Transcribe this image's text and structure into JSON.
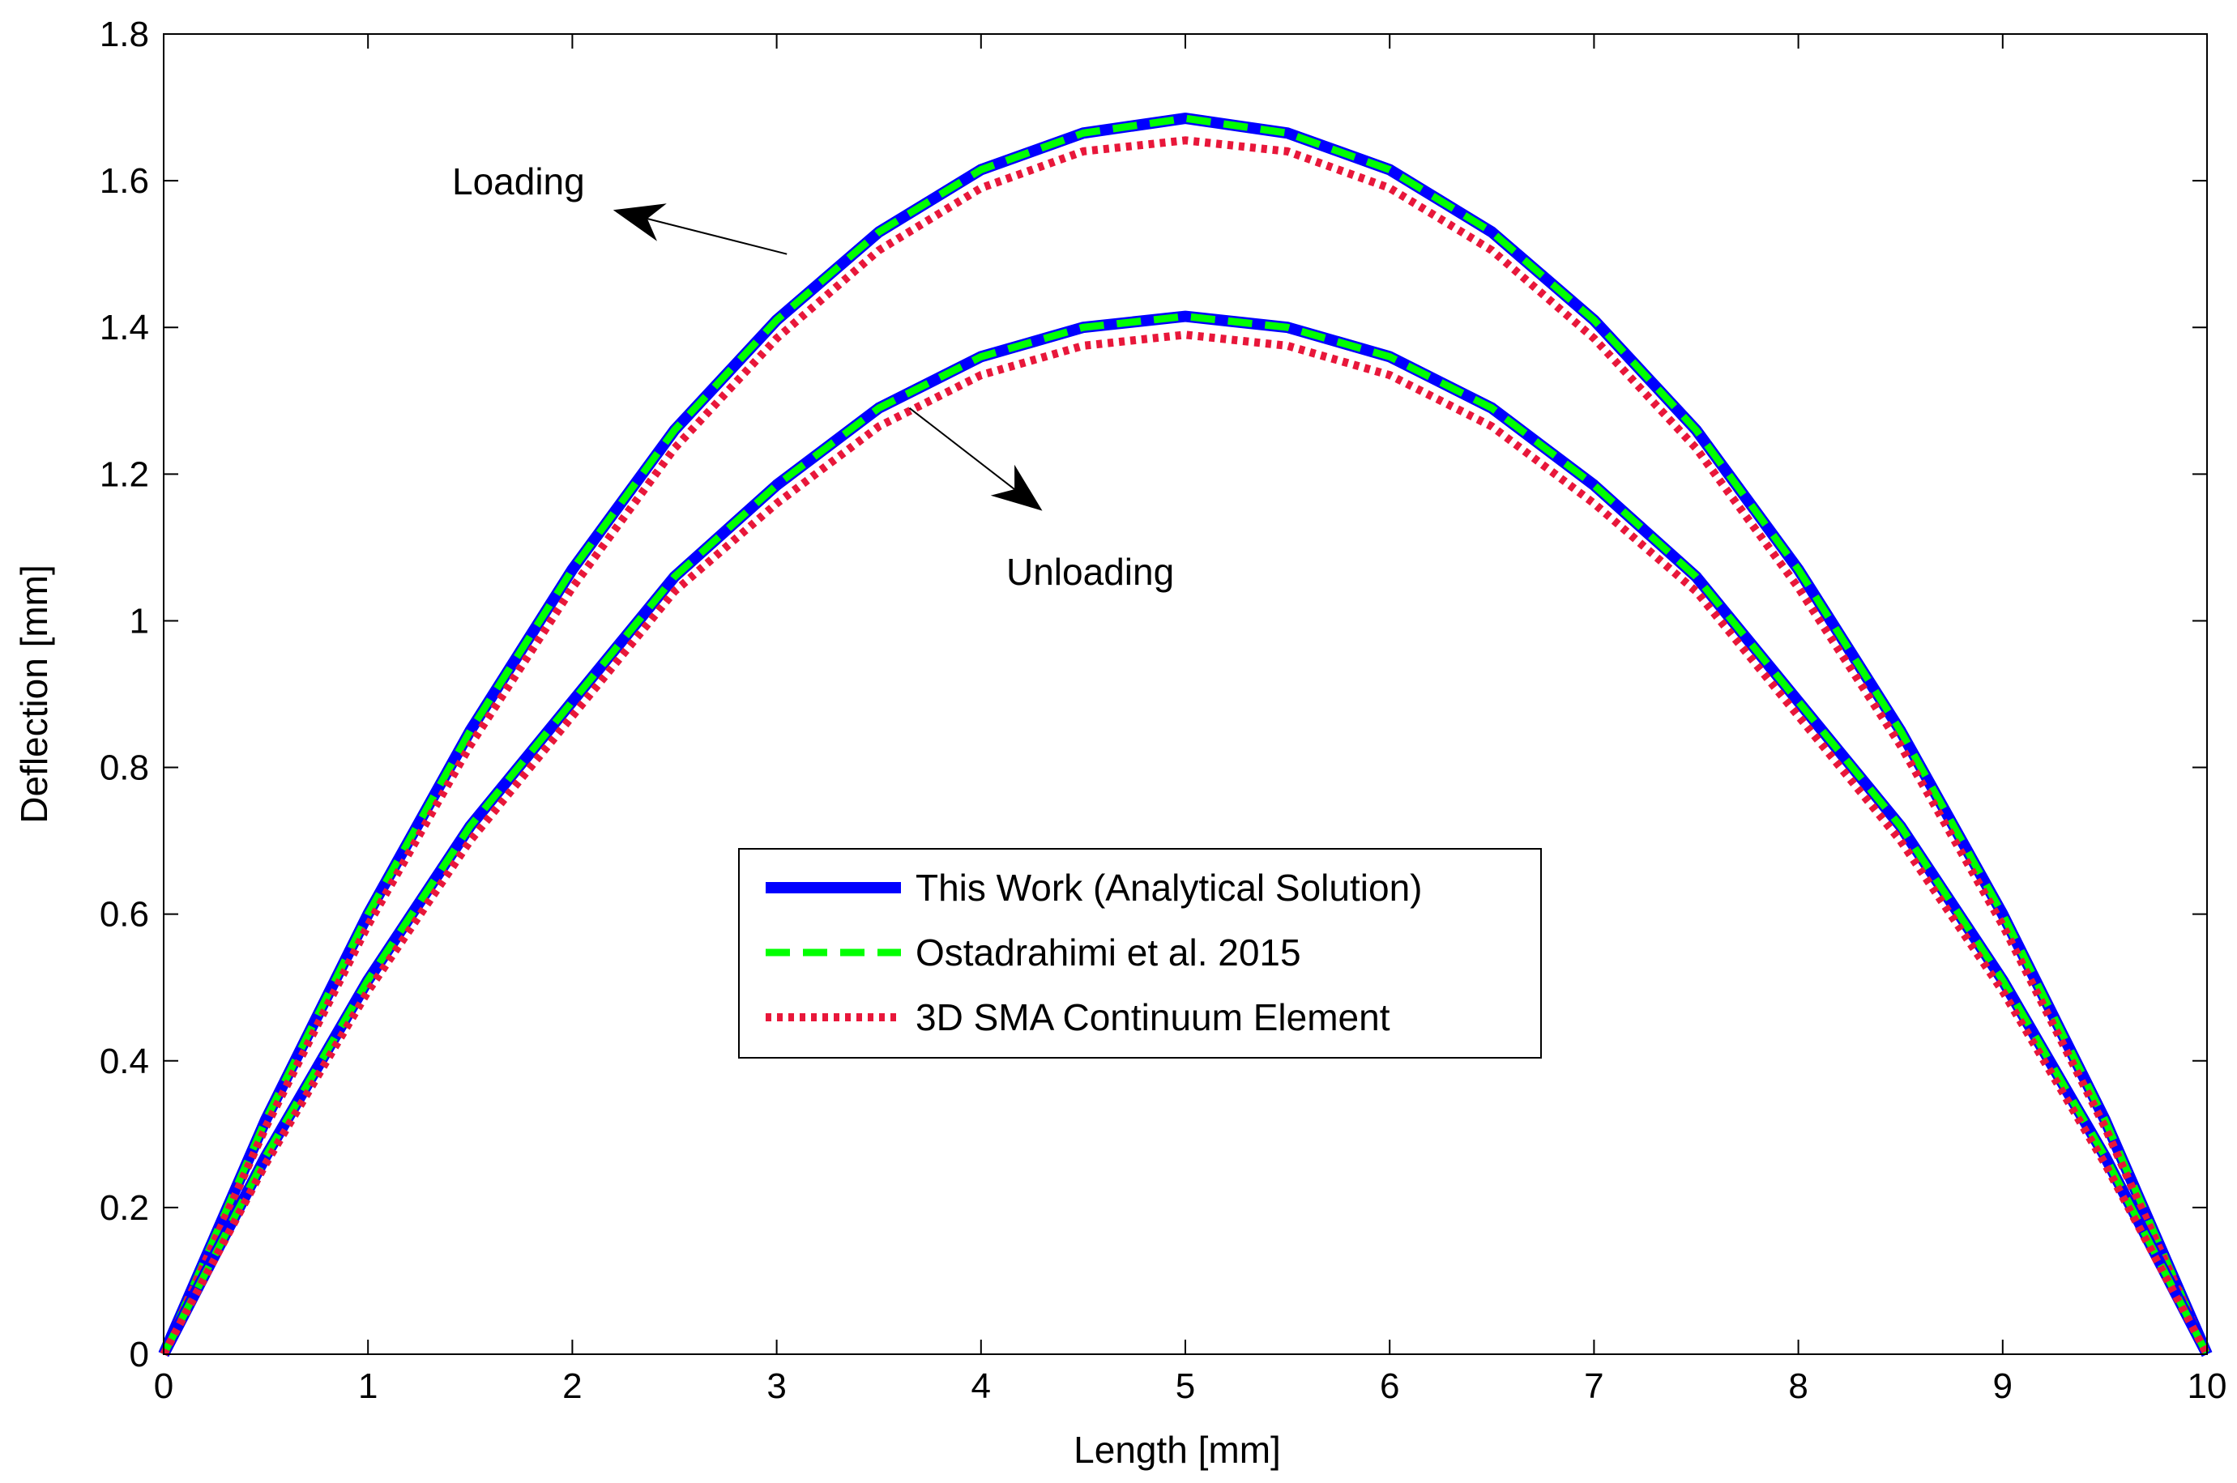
{
  "chart_data": {
    "type": "line",
    "title": "",
    "xlabel": "Length [mm]",
    "ylabel": "Deflection [mm]",
    "xlim": [
      0,
      10
    ],
    "ylim": [
      0,
      1.8
    ],
    "x_ticks": [
      0,
      1,
      2,
      3,
      4,
      5,
      6,
      7,
      8,
      9,
      10
    ],
    "x_tick_labels": [
      "0",
      "1",
      "2",
      "3",
      "4",
      "5",
      "6",
      "7",
      "8",
      "9",
      "10"
    ],
    "y_ticks": [
      0,
      0.2,
      0.4,
      0.6,
      0.8,
      1.0,
      1.2,
      1.4,
      1.6,
      1.8
    ],
    "y_tick_labels": [
      "0",
      "0.2",
      "0.4",
      "0.6",
      "0.8",
      "1",
      "1.2",
      "1.4",
      "1.6",
      "1.8"
    ],
    "grid": false,
    "legend_position": "center",
    "x": [
      0,
      0.5,
      1,
      1.5,
      2,
      2.5,
      3,
      3.5,
      4,
      4.5,
      5,
      5.5,
      6,
      6.5,
      7,
      7.5,
      8,
      8.5,
      9,
      9.5,
      10
    ],
    "series": [
      {
        "name": "This Work (Analytical Solution)",
        "branch": "Loading",
        "color": "#0000ff",
        "style": "solid",
        "values": [
          0,
          0.32,
          0.6,
          0.85,
          1.07,
          1.26,
          1.41,
          1.53,
          1.615,
          1.665,
          1.685,
          1.665,
          1.615,
          1.53,
          1.41,
          1.26,
          1.07,
          0.85,
          0.6,
          0.32,
          0
        ]
      },
      {
        "name": "Ostadrahimi et al. 2015",
        "branch": "Loading",
        "color": "#00ff00",
        "style": "dashed",
        "values": [
          0,
          0.32,
          0.6,
          0.85,
          1.07,
          1.26,
          1.41,
          1.53,
          1.615,
          1.665,
          1.685,
          1.665,
          1.615,
          1.53,
          1.41,
          1.26,
          1.07,
          0.85,
          0.6,
          0.32,
          0
        ]
      },
      {
        "name": "3D SMA Continuum Element",
        "branch": "Loading",
        "color": "#e8173a",
        "style": "dotted",
        "values": [
          0,
          0.31,
          0.585,
          0.83,
          1.045,
          1.235,
          1.385,
          1.505,
          1.59,
          1.64,
          1.655,
          1.64,
          1.59,
          1.505,
          1.385,
          1.235,
          1.045,
          0.83,
          0.585,
          0.31,
          0
        ]
      },
      {
        "name": "This Work (Analytical Solution)",
        "branch": "Unloading",
        "color": "#0000ff",
        "style": "solid",
        "values": [
          0,
          0.27,
          0.51,
          0.72,
          0.89,
          1.06,
          1.185,
          1.29,
          1.36,
          1.4,
          1.415,
          1.4,
          1.36,
          1.29,
          1.185,
          1.06,
          0.89,
          0.72,
          0.51,
          0.27,
          0
        ]
      },
      {
        "name": "Ostadrahimi et al. 2015",
        "branch": "Unloading",
        "color": "#00ff00",
        "style": "dashed",
        "values": [
          0,
          0.27,
          0.51,
          0.72,
          0.89,
          1.06,
          1.185,
          1.29,
          1.36,
          1.4,
          1.415,
          1.4,
          1.36,
          1.29,
          1.185,
          1.06,
          0.89,
          0.72,
          0.51,
          0.27,
          0
        ]
      },
      {
        "name": "3D SMA Continuum Element",
        "branch": "Unloading",
        "color": "#e8173a",
        "style": "dotted",
        "values": [
          0,
          0.26,
          0.495,
          0.7,
          0.87,
          1.04,
          1.16,
          1.265,
          1.335,
          1.375,
          1.39,
          1.375,
          1.335,
          1.265,
          1.16,
          1.04,
          0.87,
          0.7,
          0.495,
          0.26,
          0
        ]
      }
    ],
    "legend": [
      {
        "label": "This Work (Analytical Solution)",
        "color": "#0000ff",
        "style": "solid"
      },
      {
        "label": "Ostadrahimi et al. 2015",
        "color": "#00ff00",
        "style": "dashed"
      },
      {
        "label": "3D SMA Continuum Element",
        "color": "#e8173a",
        "style": "dotted"
      }
    ],
    "annotations": [
      {
        "text": "Loading",
        "arrow_from": [
          3.05,
          1.5
        ],
        "arrow_to": [
          2.2,
          1.56
        ]
      },
      {
        "text": "Unloading",
        "arrow_from": [
          3.65,
          1.29
        ],
        "arrow_to": [
          4.3,
          1.15
        ]
      }
    ]
  }
}
